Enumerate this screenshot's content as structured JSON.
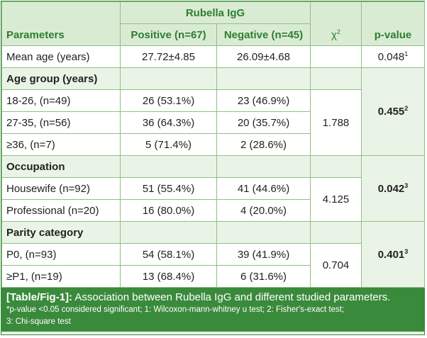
{
  "header": {
    "group_label": "Rubella IgG",
    "col_params": "Parameters",
    "col_pos": "Positive (n=67)",
    "col_neg": "Negative (n=45)",
    "col_chi": "χ",
    "col_chi_sup": "2",
    "col_p": "p-value"
  },
  "mean_age": {
    "label": "Mean age (years)",
    "pos": "27.72±4.85",
    "neg": "26.09±4.68",
    "p": "0.048",
    "p_sup": "1"
  },
  "age_group": {
    "title": "Age group (years)",
    "rows": [
      {
        "label": "18-26, (n=49)",
        "pos": "26 (53.1%)",
        "neg": "23 (46.9%)"
      },
      {
        "label": "27-35, (n=56)",
        "pos": "36 (64.3%)",
        "neg": "20 (35.7%)"
      },
      {
        "label": "≥36, (n=7)",
        "pos": "5 (71.4%)",
        "neg": "2 (28.6%)"
      }
    ],
    "chi": "1.788",
    "p": "0.455",
    "p_sup": "2"
  },
  "occupation": {
    "title": "Occupation",
    "rows": [
      {
        "label": "Housewife (n=92)",
        "pos": "51 (55.4%)",
        "neg": "41 (44.6%)"
      },
      {
        "label": "Professional (n=20)",
        "pos": "16 (80.0%)",
        "neg": "4 (20.0%)"
      }
    ],
    "chi": "4.125",
    "p": "0.042",
    "p_sup": "3"
  },
  "parity": {
    "title": "Parity category",
    "rows": [
      {
        "label": "P0, (n=93)",
        "pos": "54 (58.1%)",
        "neg": "39 (41.9%)"
      },
      {
        "label": "≥P1, (n=19)",
        "pos": "13 (68.4%)",
        "neg": "6 (31.6%)"
      }
    ],
    "chi": "0.704",
    "p": "0.401",
    "p_sup": "3"
  },
  "caption": {
    "label": "[Table/Fig-1]:",
    "title": "Association between Rubella IgG and different studied parameters.",
    "note_line1": "*p-value <0.05 considered significant; 1: Wilcoxon-mann-whitney u test; 2: Fisher's-exact test;",
    "note_line2": "3: Chi-square test"
  },
  "colors": {
    "accent": "#3a8a3c",
    "header_bg": "#d9ecd3",
    "section_bg": "#eaf4e6",
    "border": "#8fbf86"
  }
}
